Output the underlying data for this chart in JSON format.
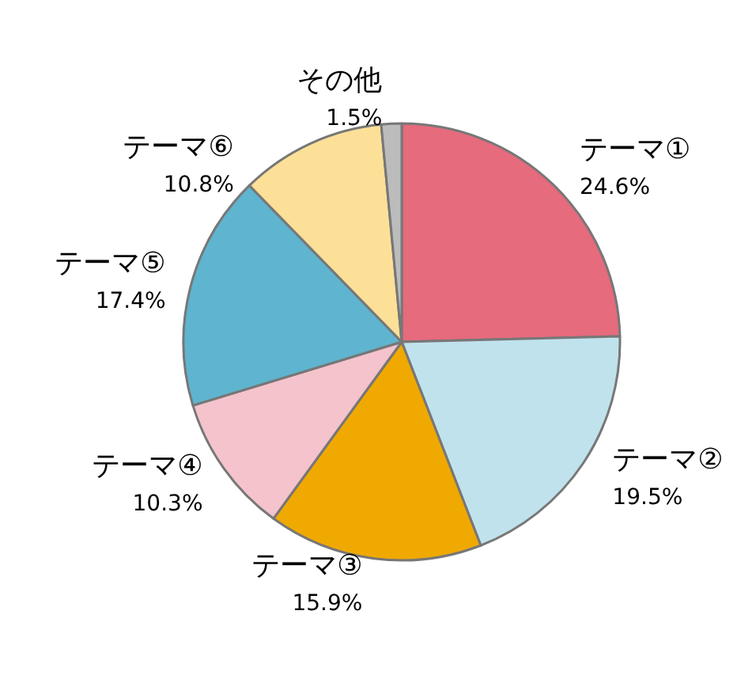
{
  "chart_data": {
    "type": "pie",
    "categories": [
      "テーマ①",
      "テーマ②",
      "テーマ③",
      "テーマ④",
      "テーマ⑤",
      "テーマ⑥",
      "その他"
    ],
    "values": [
      24.6,
      19.5,
      15.9,
      10.3,
      17.4,
      10.8,
      1.5
    ],
    "colors": [
      "#e56b7d",
      "#c0e2ec",
      "#f0a900",
      "#f4c3cc",
      "#5fb4cf",
      "#fde097",
      "#bcbcbc"
    ],
    "value_labels": [
      "24.6%",
      "19.5%",
      "15.9%",
      "10.3%",
      "17.4%",
      "10.8%",
      "1.5%"
    ]
  }
}
